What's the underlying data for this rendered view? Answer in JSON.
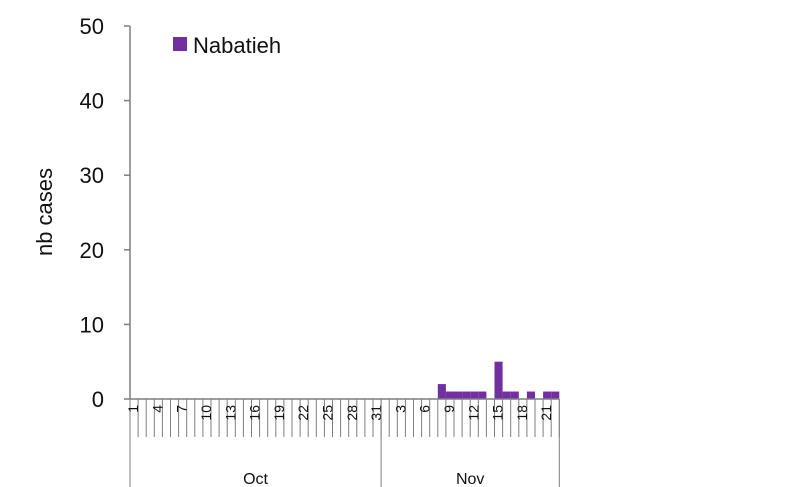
{
  "chart_data": {
    "type": "bar",
    "title": "",
    "xlabel": "",
    "ylabel": "nb cases",
    "ylim": [
      0,
      50
    ],
    "yticks": [
      0,
      10,
      20,
      30,
      40,
      50
    ],
    "grid": false,
    "legend_position": "top-left",
    "categories": [
      "1",
      "2",
      "3",
      "4",
      "5",
      "6",
      "7",
      "8",
      "9",
      "10",
      "11",
      "12",
      "13",
      "14",
      "15",
      "16",
      "17",
      "18",
      "19",
      "20",
      "21",
      "22",
      "23",
      "24",
      "25",
      "26",
      "27",
      "28",
      "29",
      "30",
      "31",
      "1",
      "2",
      "3",
      "4",
      "5",
      "6",
      "7",
      "8",
      "9",
      "10",
      "11",
      "12",
      "13",
      "14",
      "15",
      "16",
      "17",
      "18",
      "19",
      "20",
      "21",
      "22"
    ],
    "tick_labels": [
      {
        "index": 0,
        "label": "1"
      },
      {
        "index": 3,
        "label": "4"
      },
      {
        "index": 6,
        "label": "7"
      },
      {
        "index": 9,
        "label": "10"
      },
      {
        "index": 12,
        "label": "13"
      },
      {
        "index": 15,
        "label": "16"
      },
      {
        "index": 18,
        "label": "19"
      },
      {
        "index": 21,
        "label": "22"
      },
      {
        "index": 24,
        "label": "25"
      },
      {
        "index": 27,
        "label": "28"
      },
      {
        "index": 30,
        "label": "31"
      },
      {
        "index": 33,
        "label": "3"
      },
      {
        "index": 36,
        "label": "6"
      },
      {
        "index": 39,
        "label": "9"
      },
      {
        "index": 42,
        "label": "12"
      },
      {
        "index": 45,
        "label": "15"
      },
      {
        "index": 48,
        "label": "18"
      },
      {
        "index": 51,
        "label": "21"
      }
    ],
    "months": [
      {
        "label": "Oct",
        "start": 0,
        "end": 30
      },
      {
        "label": "Nov",
        "start": 31,
        "end": 52
      }
    ],
    "series": [
      {
        "name": "Nabatieh",
        "color": "#7030a0",
        "values": [
          0,
          0,
          0,
          0,
          0,
          0,
          0,
          0,
          0,
          0,
          0,
          0,
          0,
          0,
          0,
          0,
          0,
          0,
          0,
          0,
          0,
          0,
          0,
          0,
          0,
          0,
          0,
          0,
          0,
          0,
          0,
          0,
          0,
          0,
          0,
          0,
          0,
          0,
          2,
          1,
          1,
          1,
          1,
          1,
          0,
          5,
          1,
          1,
          0,
          1,
          0,
          1,
          1
        ]
      }
    ]
  }
}
